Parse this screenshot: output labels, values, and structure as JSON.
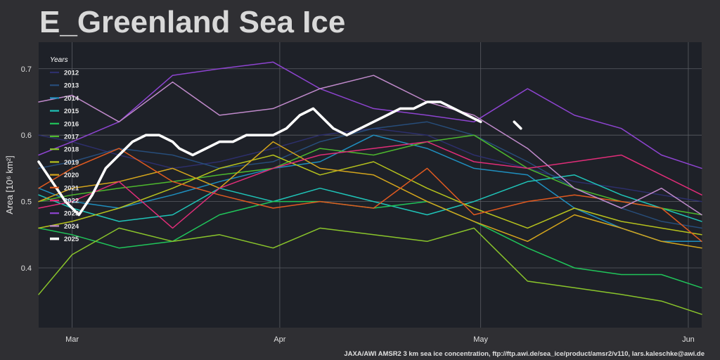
{
  "title": "E_Greenland Sea Ice",
  "source": "JAXA/AWI AMSR2 3 km sea ice concentration, ftp://ftp.awi.de/sea_ice/product/amsr2/v110, lars.kaleschke@awi.de",
  "colors": {
    "background": "#2f2f33",
    "plot_background": "#1e2128",
    "grid": "#5a5d63",
    "text": "#e0e0e0"
  },
  "chart_data": {
    "type": "line",
    "title": "E_Greenland Sea Ice",
    "xlabel": "",
    "ylabel": "Area [10⁶ km²]",
    "x_unit": "day of year",
    "xlim": [
      55,
      154
    ],
    "ylim": [
      0.31,
      0.74
    ],
    "x_ticks": [
      {
        "x": 60,
        "label": "Mar"
      },
      {
        "x": 91,
        "label": "Apr"
      },
      {
        "x": 121,
        "label": "May"
      },
      {
        "x": 152,
        "label": "Jun"
      }
    ],
    "y_ticks": [
      0.4,
      0.5,
      0.6,
      0.7
    ],
    "grid": true,
    "legend": {
      "title": "Years",
      "position": "top-left"
    },
    "series": [
      {
        "name": "2012",
        "color": "#2d2f6b",
        "x": [
          55,
          60,
          67,
          75,
          82,
          90,
          97,
          105,
          113,
          120,
          128,
          135,
          142,
          148,
          154
        ],
        "y": [
          0.6,
          0.59,
          0.57,
          0.55,
          0.56,
          0.58,
          0.6,
          0.61,
          0.6,
          0.57,
          0.55,
          0.53,
          0.52,
          0.51,
          0.5
        ]
      },
      {
        "name": "2013",
        "color": "#274d7a",
        "x": [
          55,
          60,
          67,
          75,
          82,
          90,
          97,
          105,
          113,
          120,
          128,
          135,
          142,
          148,
          154
        ],
        "y": [
          0.55,
          0.56,
          0.58,
          0.57,
          0.55,
          0.56,
          0.59,
          0.61,
          0.62,
          0.6,
          0.56,
          0.52,
          0.49,
          0.47,
          0.46
        ]
      },
      {
        "name": "2014",
        "color": "#1f8fbf",
        "x": [
          55,
          60,
          67,
          75,
          82,
          90,
          97,
          105,
          113,
          120,
          128,
          135,
          142,
          148,
          154
        ],
        "y": [
          0.52,
          0.5,
          0.49,
          0.51,
          0.53,
          0.55,
          0.56,
          0.6,
          0.58,
          0.55,
          0.54,
          0.49,
          0.46,
          0.44,
          0.44
        ]
      },
      {
        "name": "2015",
        "color": "#1fc4b8",
        "x": [
          55,
          60,
          67,
          75,
          82,
          90,
          97,
          105,
          113,
          120,
          128,
          135,
          142,
          148,
          154
        ],
        "y": [
          0.51,
          0.49,
          0.47,
          0.48,
          0.52,
          0.5,
          0.52,
          0.5,
          0.48,
          0.5,
          0.53,
          0.54,
          0.51,
          0.49,
          0.47
        ]
      },
      {
        "name": "2016",
        "color": "#20c45a",
        "x": [
          55,
          60,
          67,
          75,
          82,
          90,
          97,
          105,
          113,
          120,
          128,
          135,
          142,
          148,
          154
        ],
        "y": [
          0.46,
          0.45,
          0.43,
          0.44,
          0.48,
          0.5,
          0.5,
          0.49,
          0.5,
          0.47,
          0.43,
          0.4,
          0.39,
          0.39,
          0.37
        ]
      },
      {
        "name": "2017",
        "color": "#4db82e",
        "x": [
          55,
          60,
          67,
          75,
          82,
          90,
          97,
          105,
          113,
          120,
          128,
          135,
          142,
          148,
          154
        ],
        "y": [
          0.5,
          0.51,
          0.52,
          0.53,
          0.54,
          0.55,
          0.58,
          0.57,
          0.59,
          0.6,
          0.55,
          0.52,
          0.5,
          0.49,
          0.48
        ]
      },
      {
        "name": "2018",
        "color": "#8ac52b",
        "x": [
          55,
          60,
          67,
          75,
          82,
          90,
          97,
          105,
          113,
          120,
          128,
          135,
          142,
          148,
          154
        ],
        "y": [
          0.36,
          0.42,
          0.46,
          0.44,
          0.45,
          0.43,
          0.46,
          0.45,
          0.44,
          0.46,
          0.38,
          0.37,
          0.36,
          0.35,
          0.33
        ]
      },
      {
        "name": "2019",
        "color": "#b6c21d",
        "x": [
          55,
          60,
          67,
          75,
          82,
          90,
          97,
          105,
          113,
          120,
          128,
          135,
          142,
          148,
          154
        ],
        "y": [
          0.46,
          0.47,
          0.49,
          0.52,
          0.55,
          0.57,
          0.54,
          0.56,
          0.52,
          0.49,
          0.46,
          0.49,
          0.47,
          0.46,
          0.45
        ]
      },
      {
        "name": "2020",
        "color": "#d4a51c",
        "x": [
          55,
          60,
          67,
          75,
          82,
          90,
          97,
          105,
          113,
          120,
          128,
          135,
          142,
          148,
          154
        ],
        "y": [
          0.5,
          0.52,
          0.53,
          0.55,
          0.52,
          0.59,
          0.55,
          0.54,
          0.5,
          0.47,
          0.44,
          0.48,
          0.46,
          0.44,
          0.43
        ]
      },
      {
        "name": "2021",
        "color": "#e05a20",
        "x": [
          55,
          60,
          67,
          75,
          82,
          90,
          97,
          105,
          113,
          120,
          128,
          135,
          142,
          148,
          154
        ],
        "y": [
          0.52,
          0.55,
          0.58,
          0.53,
          0.51,
          0.49,
          0.5,
          0.49,
          0.55,
          0.48,
          0.5,
          0.51,
          0.5,
          0.49,
          0.44
        ]
      },
      {
        "name": "2022",
        "color": "#e02d78",
        "x": [
          55,
          60,
          67,
          75,
          82,
          90,
          97,
          105,
          113,
          120,
          128,
          135,
          142,
          148,
          154
        ],
        "y": [
          0.49,
          0.5,
          0.53,
          0.46,
          0.52,
          0.55,
          0.57,
          0.58,
          0.59,
          0.56,
          0.55,
          0.56,
          0.57,
          0.54,
          0.51
        ]
      },
      {
        "name": "2023",
        "color": "#8e44d1",
        "x": [
          55,
          60,
          67,
          75,
          82,
          90,
          97,
          105,
          113,
          120,
          128,
          135,
          142,
          148,
          154
        ],
        "y": [
          0.57,
          0.59,
          0.62,
          0.69,
          0.7,
          0.71,
          0.67,
          0.64,
          0.63,
          0.62,
          0.67,
          0.63,
          0.61,
          0.57,
          0.55
        ]
      },
      {
        "name": "2024",
        "color": "#c08acb",
        "x": [
          55,
          60,
          67,
          75,
          82,
          90,
          97,
          105,
          113,
          120,
          128,
          135,
          142,
          148,
          154
        ],
        "y": [
          0.65,
          0.66,
          0.62,
          0.68,
          0.63,
          0.64,
          0.67,
          0.69,
          0.65,
          0.63,
          0.58,
          0.52,
          0.49,
          0.52,
          0.48
        ]
      },
      {
        "name": "2025",
        "color": "#ffffff",
        "x": [
          55,
          57,
          59,
          61,
          63,
          65,
          67,
          69,
          71,
          73,
          75,
          76,
          78,
          80,
          82,
          84,
          86,
          88,
          90,
          92,
          94,
          96,
          98,
          99,
          101,
          103,
          105,
          107,
          109,
          111,
          113,
          115,
          117,
          119,
          121,
          null,
          126,
          127
        ],
        "y": [
          0.56,
          0.53,
          0.5,
          0.48,
          0.51,
          0.55,
          0.57,
          0.59,
          0.6,
          0.6,
          0.59,
          0.58,
          0.57,
          0.58,
          0.59,
          0.59,
          0.6,
          0.6,
          0.6,
          0.61,
          0.63,
          0.64,
          0.62,
          0.61,
          0.6,
          0.61,
          0.62,
          0.63,
          0.64,
          0.64,
          0.65,
          0.65,
          0.64,
          0.63,
          0.62,
          null,
          0.62,
          0.61
        ]
      }
    ]
  }
}
